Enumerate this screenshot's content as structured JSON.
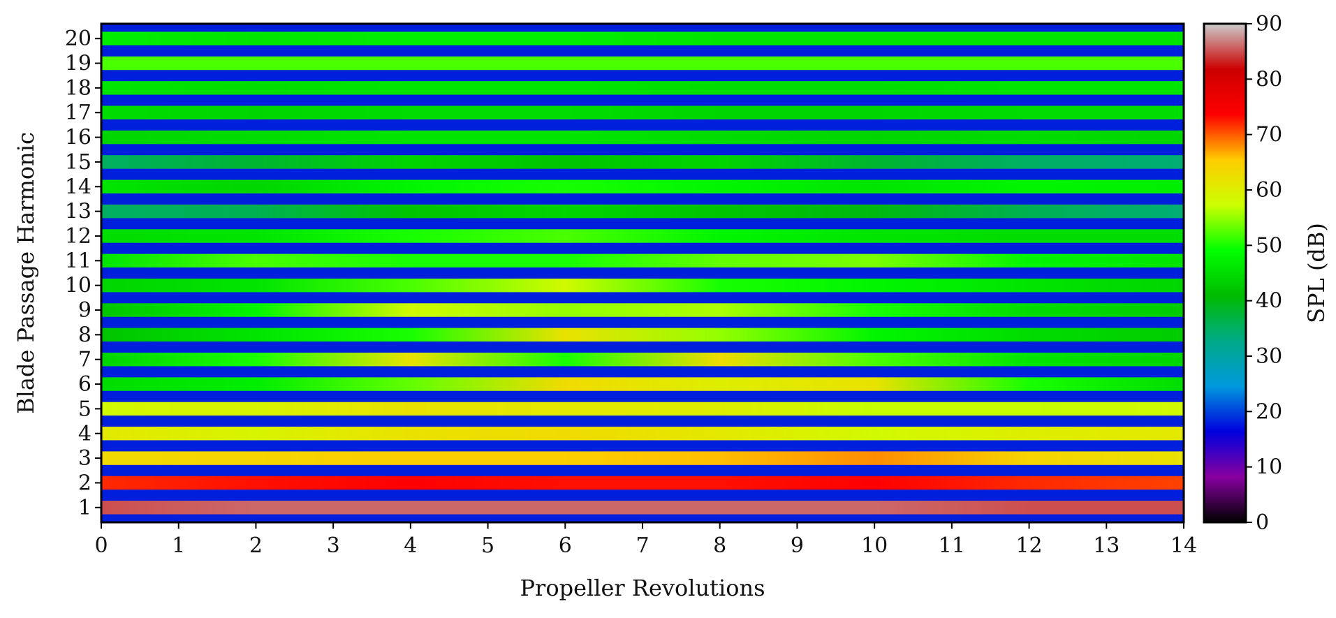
{
  "chart_data": {
    "type": "heatmap",
    "title": "",
    "xlabel": "Propeller Revolutions",
    "ylabel": "Blade Passage Harmonic",
    "colorbar_label": "SPL (dB)",
    "xlim": [
      0,
      14
    ],
    "ylim": [
      0.4,
      20.6
    ],
    "clim": [
      0,
      90
    ],
    "x_ticks": [
      "0",
      "1",
      "2",
      "3",
      "4",
      "5",
      "6",
      "7",
      "8",
      "9",
      "10",
      "11",
      "12",
      "13",
      "14"
    ],
    "y_ticks": [
      "1",
      "2",
      "3",
      "4",
      "5",
      "6",
      "7",
      "8",
      "9",
      "10",
      "11",
      "12",
      "13",
      "14",
      "15",
      "16",
      "17",
      "18",
      "19",
      "20"
    ],
    "colorbar_ticks": [
      "0",
      "10",
      "20",
      "30",
      "40",
      "50",
      "60",
      "70",
      "80",
      "90"
    ],
    "colormap": "nipy_spectral",
    "colormap_stops": [
      "#000000",
      "#8800a0",
      "#0000dd",
      "#0099dd",
      "#00aa88",
      "#00bb00",
      "#00ff00",
      "#ccff00",
      "#ffcc00",
      "#ff0000",
      "#cc0000",
      "#cccccc"
    ],
    "harmonics": [
      {
        "harmonic": 1,
        "revolution": [
          0,
          2,
          4,
          6,
          8,
          10,
          12,
          14
        ],
        "spl_db": [
          85,
          86,
          86,
          86,
          86,
          86,
          85,
          85
        ]
      },
      {
        "harmonic": 2,
        "revolution": [
          0,
          2,
          4,
          6,
          8,
          10,
          12,
          14
        ],
        "spl_db": [
          72,
          73,
          74,
          73,
          73,
          74,
          72,
          71
        ]
      },
      {
        "harmonic": 3,
        "revolution": [
          0,
          2,
          4,
          6,
          8,
          10,
          12,
          14
        ],
        "spl_db": [
          63,
          64,
          65,
          65,
          66,
          68,
          64,
          62
        ]
      },
      {
        "harmonic": 4,
        "revolution": [
          0,
          2,
          4,
          6,
          8,
          10,
          12,
          14
        ],
        "spl_db": [
          61,
          59,
          62,
          63,
          61,
          58,
          60,
          61
        ]
      },
      {
        "harmonic": 5,
        "revolution": [
          0,
          2,
          4,
          6,
          8,
          10,
          12,
          14
        ],
        "spl_db": [
          58,
          59,
          62,
          61,
          60,
          57,
          57,
          58
        ]
      },
      {
        "harmonic": 6,
        "revolution": [
          0,
          2,
          4,
          6,
          8,
          10,
          12,
          14
        ],
        "spl_db": [
          45,
          47,
          53,
          63,
          60,
          62,
          50,
          45
        ]
      },
      {
        "harmonic": 7,
        "revolution": [
          0,
          2,
          4,
          6,
          8,
          10,
          12,
          14
        ],
        "spl_db": [
          44,
          50,
          62,
          50,
          63,
          52,
          46,
          44
        ]
      },
      {
        "harmonic": 8,
        "revolution": [
          0,
          2,
          4,
          6,
          8,
          10,
          12,
          14
        ],
        "spl_db": [
          42,
          46,
          50,
          62,
          55,
          48,
          45,
          43
        ]
      },
      {
        "harmonic": 9,
        "revolution": [
          0,
          2,
          4,
          6,
          8,
          10,
          12,
          14
        ],
        "spl_db": [
          42,
          48,
          58,
          55,
          56,
          50,
          45,
          43
        ]
      },
      {
        "harmonic": 10,
        "revolution": [
          0,
          2,
          4,
          6,
          8,
          10,
          12,
          14
        ],
        "spl_db": [
          44,
          46,
          52,
          58,
          50,
          48,
          46,
          44
        ]
      },
      {
        "harmonic": 11,
        "revolution": [
          0,
          2,
          4,
          6,
          8,
          10,
          12,
          14
        ],
        "spl_db": [
          46,
          52,
          50,
          50,
          53,
          54,
          48,
          46
        ]
      },
      {
        "harmonic": 12,
        "revolution": [
          0,
          2,
          4,
          6,
          8,
          10,
          12,
          14
        ],
        "spl_db": [
          45,
          46,
          50,
          52,
          48,
          46,
          45,
          45
        ]
      },
      {
        "harmonic": 13,
        "revolution": [
          0,
          2,
          4,
          6,
          8,
          10,
          12,
          14
        ],
        "spl_db": [
          35,
          36,
          42,
          44,
          42,
          40,
          36,
          34
        ]
      },
      {
        "harmonic": 14,
        "revolution": [
          0,
          2,
          4,
          6,
          8,
          10,
          12,
          14
        ],
        "spl_db": [
          46,
          44,
          48,
          50,
          48,
          46,
          48,
          47
        ]
      },
      {
        "harmonic": 15,
        "revolution": [
          0,
          2,
          4,
          6,
          8,
          10,
          12,
          14
        ],
        "spl_db": [
          35,
          38,
          44,
          42,
          44,
          38,
          35,
          34
        ]
      },
      {
        "harmonic": 16,
        "revolution": [
          0,
          2,
          4,
          6,
          8,
          10,
          12,
          14
        ],
        "spl_db": [
          44,
          45,
          46,
          46,
          45,
          44,
          45,
          44
        ]
      },
      {
        "harmonic": 17,
        "revolution": [
          0,
          2,
          4,
          6,
          8,
          10,
          12,
          14
        ],
        "spl_db": [
          45,
          44,
          45,
          45,
          44,
          44,
          45,
          45
        ]
      },
      {
        "harmonic": 18,
        "revolution": [
          0,
          2,
          4,
          6,
          8,
          10,
          12,
          14
        ],
        "spl_db": [
          46,
          45,
          46,
          46,
          45,
          45,
          46,
          46
        ]
      },
      {
        "harmonic": 19,
        "revolution": [
          0,
          2,
          4,
          6,
          8,
          10,
          12,
          14
        ],
        "spl_db": [
          52,
          52,
          52,
          52,
          52,
          52,
          52,
          52
        ]
      },
      {
        "harmonic": 20,
        "revolution": [
          0,
          2,
          4,
          6,
          8,
          10,
          12,
          14
        ],
        "spl_db": [
          47,
          46,
          47,
          47,
          46,
          46,
          46,
          46
        ]
      }
    ],
    "between_harmonics_spl_db": 18
  }
}
